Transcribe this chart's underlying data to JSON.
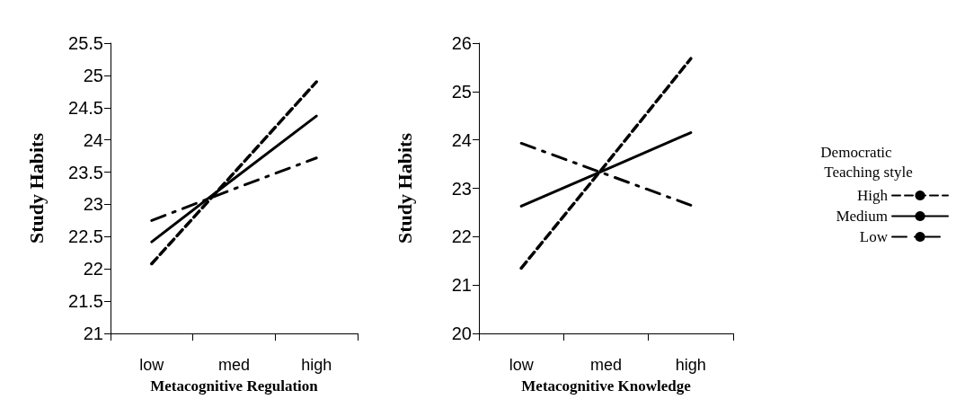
{
  "chart_data": [
    {
      "type": "line",
      "categories": [
        "low",
        "med",
        "high"
      ],
      "xlabel": "Metacognitive Regulation",
      "ylabel": "Study Habits",
      "ylim": [
        21,
        25.5
      ],
      "yticks": [
        21,
        21.5,
        22,
        22.5,
        23,
        23.5,
        24,
        24.5,
        25,
        25.5
      ],
      "grid": false,
      "legend": false,
      "series": [
        {
          "color": "#000000",
          "line_style": "dashed",
          "values": [
            22.08,
            23.49,
            24.9
          ]
        },
        {
          "color": "#000000",
          "line_style": "solid",
          "values": [
            22.42,
            23.4,
            24.37
          ]
        },
        {
          "color": "#000000",
          "line_style": "dashdot",
          "values": [
            22.75,
            23.24,
            23.72
          ]
        }
      ]
    },
    {
      "type": "line",
      "categories": [
        "low",
        "med",
        "high"
      ],
      "xlabel": "Metacognitive Knowledge",
      "ylabel": "Study Habits",
      "ylim": [
        20,
        26
      ],
      "yticks": [
        20,
        21,
        22,
        23,
        24,
        25,
        26
      ],
      "grid": false,
      "legend": "right",
      "legend_title": "Democratic\n Teaching style",
      "series": [
        {
          "name": "High",
          "color": "#000000",
          "line_style": "dashed",
          "values": [
            21.35,
            23.5,
            25.68
          ]
        },
        {
          "name": "Medium",
          "color": "#000000",
          "line_style": "solid",
          "values": [
            22.63,
            23.39,
            24.15
          ]
        },
        {
          "name": "Low",
          "color": "#000000",
          "line_style": "dashdot",
          "values": [
            23.93,
            23.29,
            22.65
          ]
        }
      ]
    }
  ]
}
